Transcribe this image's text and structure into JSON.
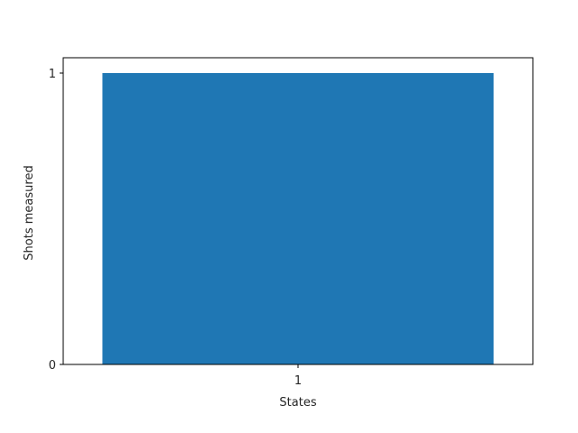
{
  "chart_data": {
    "type": "bar",
    "title": "",
    "xlabel": "States",
    "ylabel": "Shots measured",
    "categories": [
      "1"
    ],
    "values": [
      1
    ],
    "ylim": [
      0,
      1
    ],
    "yticks": [
      "0",
      "1"
    ],
    "bar_color": "#1f77b4",
    "grid": false,
    "legend": "none"
  }
}
